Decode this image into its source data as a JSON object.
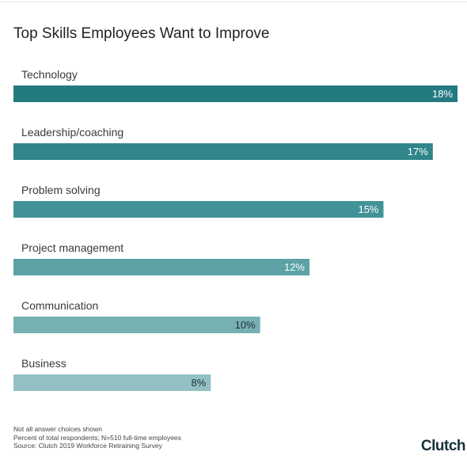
{
  "chart_data": {
    "type": "bar",
    "orientation": "horizontal",
    "title": "Top Skills Employees Want to Improve",
    "categories": [
      "Technology",
      "Leadership/coaching",
      "Problem solving",
      "Project management",
      "Communication",
      "Business"
    ],
    "values": [
      18,
      17,
      15,
      12,
      10,
      8
    ],
    "value_labels": [
      "18%",
      "17%",
      "15%",
      "12%",
      "10%",
      "8%"
    ],
    "bar_colors": [
      "#237a80",
      "#2f8589",
      "#429397",
      "#5ca2a5",
      "#77b0b3",
      "#93c1c3"
    ],
    "xlim": [
      0,
      18
    ],
    "grid": false,
    "legend": "none"
  },
  "notes": [
    "Not all answer choices shown",
    "Percent of total respondents; N=510 full-time employees",
    "Source: Clutch 2019 Workforce Retraining Survey"
  ],
  "brand": "Clutch"
}
